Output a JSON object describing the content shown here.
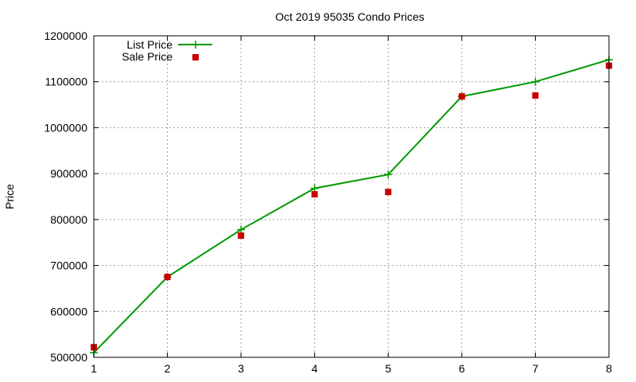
{
  "chart_data": {
    "type": "line",
    "title": "Oct 2019 95035 Condo Prices",
    "xlabel": "",
    "ylabel": "Price",
    "x": [
      1,
      2,
      3,
      4,
      5,
      6,
      7,
      8
    ],
    "xlim": [
      1,
      8
    ],
    "ylim": [
      500000,
      1200000
    ],
    "xticks": [
      1,
      2,
      3,
      4,
      5,
      6,
      7,
      8
    ],
    "yticks": [
      500000,
      600000,
      700000,
      800000,
      900000,
      1000000,
      1100000,
      1200000
    ],
    "grid": true,
    "legend_position": "top-left",
    "series": [
      {
        "name": "List Price",
        "style": "line-plus",
        "color": "#009900",
        "values": [
          510000,
          675000,
          778000,
          868000,
          898000,
          1068000,
          1100000,
          1148000
        ]
      },
      {
        "name": "Sale Price",
        "style": "square-points",
        "color": "#cc0000",
        "values": [
          522000,
          675000,
          765000,
          855000,
          860000,
          1068000,
          1070000,
          1135000
        ]
      }
    ]
  }
}
